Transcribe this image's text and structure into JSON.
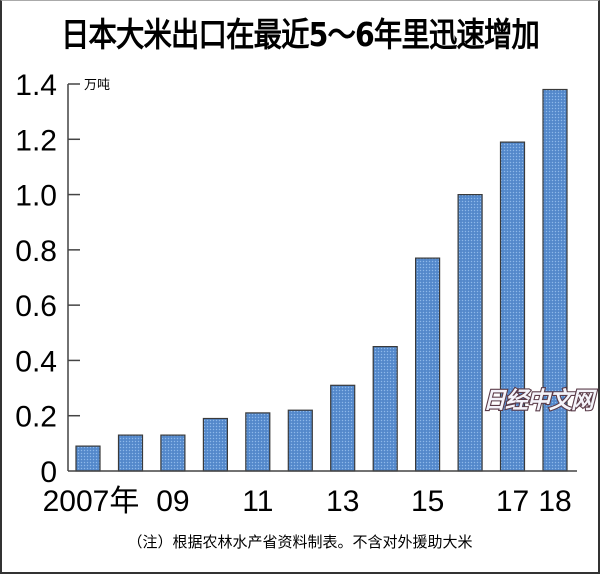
{
  "title": "日本大米出口在最近5～6年里迅速增加",
  "unit_label": "万吨",
  "footnote": "（注）根据农林水产省资料制表。不含对外援助大米",
  "watermark": "日经中文网",
  "colors": {
    "bar_fill": "#5b8fd0",
    "bar_stroke": "#3a3a3a",
    "axis": "#444444"
  },
  "y_ticks": [
    "0",
    "0.2",
    "0.4",
    "0.6",
    "0.8",
    "1.0",
    "1.2",
    "1.4"
  ],
  "x_tick_labels": [
    "2007年",
    "09",
    "11",
    "13",
    "15",
    "17",
    "18"
  ],
  "chart_data": {
    "type": "bar",
    "title": "日本大米出口在最近5～6年里迅速增加",
    "xlabel": "",
    "ylabel": "万吨",
    "categories": [
      "2007",
      "2008",
      "2009",
      "2010",
      "2011",
      "2012",
      "2013",
      "2014",
      "2015",
      "2016",
      "2017",
      "2018"
    ],
    "values": [
      0.09,
      0.13,
      0.13,
      0.19,
      0.21,
      0.22,
      0.31,
      0.45,
      0.77,
      1.0,
      1.19,
      1.38
    ],
    "ylim": [
      0,
      1.4
    ],
    "y_ticks": [
      0,
      0.2,
      0.4,
      0.6,
      0.8,
      1.0,
      1.2,
      1.4
    ],
    "x_tick_labels_shown": [
      "2007年",
      "09",
      "11",
      "13",
      "15",
      "17",
      "18"
    ],
    "grid": false,
    "legend": null,
    "annotations": [
      "（注）根据农林水产省资料制表。不含对外援助大米"
    ]
  }
}
